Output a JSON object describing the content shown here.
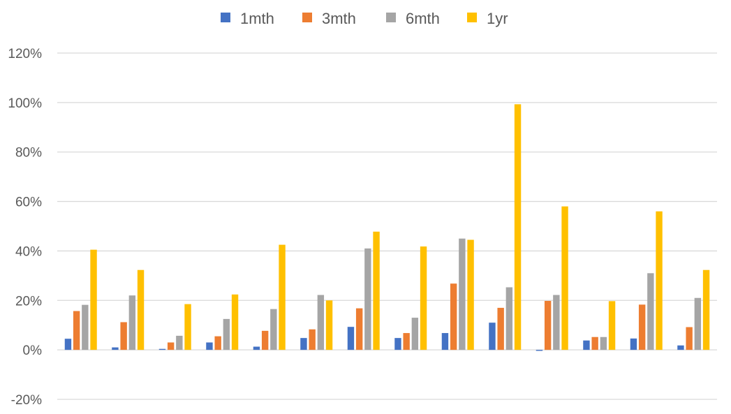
{
  "chart_data": {
    "type": "bar",
    "title": "",
    "xlabel": "",
    "ylabel": "",
    "categories": [
      "",
      "",
      "",
      "",
      "",
      "",
      "",
      "",
      "",
      "",
      "",
      "",
      "",
      ""
    ],
    "ylim": [
      -0.2,
      1.2
    ],
    "yticks": [
      -0.2,
      0,
      0.2,
      0.4,
      0.6,
      0.8,
      1.0,
      1.2
    ],
    "ytick_labels": [
      "-20%",
      "0%",
      "20%",
      "40%",
      "60%",
      "80%",
      "100%",
      "120%"
    ],
    "grid": true,
    "legend_position": "top",
    "series": [
      {
        "name": "1mth",
        "color": "#4472C4",
        "values": [
          0.045,
          0.01,
          0.004,
          0.03,
          0.013,
          0.048,
          0.093,
          0.048,
          0.068,
          0.11,
          -0.004,
          0.038,
          0.046,
          0.018
        ]
      },
      {
        "name": "3mth",
        "color": "#ED7D31",
        "values": [
          0.157,
          0.112,
          0.03,
          0.055,
          0.077,
          0.083,
          0.168,
          0.068,
          0.268,
          0.17,
          0.198,
          0.052,
          0.183,
          0.092
        ]
      },
      {
        "name": "6mth",
        "color": "#A5A5A5",
        "values": [
          0.182,
          0.22,
          0.057,
          0.125,
          0.165,
          0.222,
          0.41,
          0.13,
          0.45,
          0.253,
          0.222,
          0.052,
          0.31,
          0.21
        ]
      },
      {
        "name": "1yr",
        "color": "#FFC000",
        "values": [
          0.405,
          0.323,
          0.185,
          0.224,
          0.425,
          0.2,
          0.478,
          0.418,
          0.445,
          0.993,
          0.58,
          0.197,
          0.56,
          0.323
        ]
      }
    ]
  }
}
